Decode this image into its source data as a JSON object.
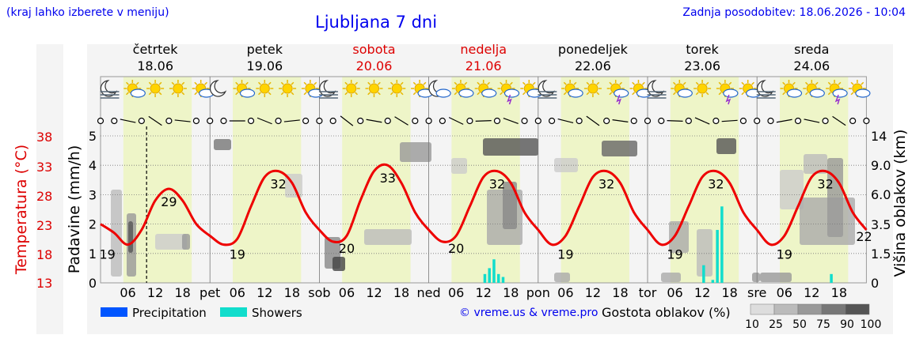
{
  "header": {
    "hint": "(kraj lahko izberete v meniju)",
    "title": "Ljubljana 7 dni",
    "updated": "Zadnja posodobitev: 18.06.2026 - 10:04"
  },
  "days": [
    {
      "name": "četrtek",
      "date": "18.06",
      "weekend": false,
      "abbr": ""
    },
    {
      "name": "petek",
      "date": "19.06",
      "weekend": false,
      "abbr": "pet"
    },
    {
      "name": "sobota",
      "date": "20.06",
      "weekend": true,
      "abbr": "sob"
    },
    {
      "name": "nedelja",
      "date": "21.06",
      "weekend": true,
      "abbr": "ned"
    },
    {
      "name": "ponedeljek",
      "date": "22.06",
      "weekend": false,
      "abbr": "pon"
    },
    {
      "name": "torek",
      "date": "23.06",
      "weekend": false,
      "abbr": "tor"
    },
    {
      "name": "sreda",
      "date": "24.06",
      "weekend": false,
      "abbr": "sre"
    }
  ],
  "weather_icons": [
    [
      "moon-fog-icon",
      "sun-cloud-icon",
      "sun-icon",
      "sun-icon",
      "sun-cloud-icon"
    ],
    [
      "moon-icon",
      "sun-cloud-icon",
      "sun-icon",
      "sun-icon",
      "sun-cloud-icon"
    ],
    [
      "moon-fog-icon",
      "sun-icon",
      "sun-icon",
      "sun-icon",
      "sun-cloud-icon"
    ],
    [
      "moon-cloud-icon",
      "sun-cloud-icon",
      "sun-cloud-icon",
      "sun-thunder-icon",
      "sun-cloud-icon"
    ],
    [
      "moon-fog-icon",
      "sun-cloud-icon",
      "sun-icon",
      "sun-thunder-icon",
      "sun-cloud-icon"
    ],
    [
      "moon-fog-icon",
      "sun-cloud-icon",
      "sun-icon",
      "sun-thunder-icon",
      "sun-cloud-icon"
    ],
    [
      "moon-fog-icon",
      "sun-cloud-icon",
      "sun-cloud-icon",
      "sun-thunder-icon",
      "sun-cloud-icon"
    ]
  ],
  "chart_data": {
    "type": "line",
    "hour_ticks": [
      "06",
      "12",
      "18"
    ],
    "left_axis_title": "Padavine (mm/h)",
    "left_axis_ticks": [
      "0",
      "1",
      "2",
      "3",
      "4",
      "5"
    ],
    "temp_axis_title": "Temperatura (°C)",
    "temp_axis_ticks": [
      "13",
      "18",
      "23",
      "28",
      "33",
      "38"
    ],
    "right_axis_title": "Višina oblakov (km)",
    "right_axis_ticks": [
      "0",
      "1.5",
      "3.5",
      "6.0",
      "9.0",
      "14"
    ],
    "temperature_extremes": [
      {
        "day": 0,
        "hour": 1.5,
        "value": "19"
      },
      {
        "day": 0,
        "hour": 15,
        "value": "29"
      },
      {
        "day": 1,
        "hour": 6,
        "value": "19"
      },
      {
        "day": 1,
        "hour": 15,
        "value": "32"
      },
      {
        "day": 2,
        "hour": 6,
        "value": "20"
      },
      {
        "day": 2,
        "hour": 15,
        "value": "33"
      },
      {
        "day": 3,
        "hour": 6,
        "value": "20"
      },
      {
        "day": 3,
        "hour": 15,
        "value": "32"
      },
      {
        "day": 4,
        "hour": 6,
        "value": "19"
      },
      {
        "day": 4,
        "hour": 15,
        "value": "32"
      },
      {
        "day": 5,
        "hour": 6,
        "value": "19"
      },
      {
        "day": 5,
        "hour": 15,
        "value": "32"
      },
      {
        "day": 6,
        "hour": 6,
        "value": "19"
      },
      {
        "day": 6,
        "hour": 15,
        "value": "32"
      },
      {
        "day": 6,
        "hour": 23.5,
        "value": "22"
      }
    ],
    "temperature_series": {
      "hours": [
        0,
        3,
        6,
        9,
        12,
        15,
        18,
        21,
        24,
        27,
        30,
        33,
        36,
        39,
        42,
        45,
        48,
        51,
        54,
        57,
        60,
        63,
        66,
        69,
        72,
        75,
        78,
        81,
        84,
        87,
        90,
        93,
        96,
        99,
        102,
        105,
        108,
        111,
        114,
        117,
        120,
        123,
        126,
        129,
        132,
        135,
        138,
        141,
        144,
        147,
        150,
        153,
        156,
        159,
        162,
        165,
        168
      ],
      "values": [
        23,
        21.5,
        19.5,
        22,
        27,
        29,
        27,
        23,
        21,
        19.5,
        20.5,
        26,
        31,
        32,
        30,
        25,
        22,
        20,
        21,
        27,
        32,
        33,
        30,
        25,
        22,
        20,
        21,
        26,
        31,
        32,
        30,
        25,
        22,
        19.5,
        21,
        26,
        31,
        32,
        30,
        25,
        22,
        19.5,
        21,
        26,
        31,
        32,
        30,
        25,
        22,
        19.5,
        21,
        26,
        31,
        32,
        30,
        25,
        22
      ]
    },
    "current_time_hour": 10.1,
    "showers": [
      {
        "day": 3,
        "hour": 12,
        "value": 0.3
      },
      {
        "day": 3,
        "hour": 13,
        "value": 0.5
      },
      {
        "day": 3,
        "hour": 14,
        "value": 0.8
      },
      {
        "day": 3,
        "hour": 15,
        "value": 0.3
      },
      {
        "day": 3,
        "hour": 16,
        "value": 0.2
      },
      {
        "day": 5,
        "hour": 12,
        "value": 0.6
      },
      {
        "day": 5,
        "hour": 14,
        "value": 0.1
      },
      {
        "day": 5,
        "hour": 15,
        "value": 1.8
      },
      {
        "day": 5,
        "hour": 16,
        "value": 2.6
      },
      {
        "day": 6,
        "hour": 16,
        "value": 0.3
      }
    ],
    "legend": {
      "precipitation_label": "Precipitation",
      "precipitation_color": "#0055ff",
      "showers_label": "Showers",
      "showers_color": "#11ddcc",
      "density_label": "Gostota oblakov (%)",
      "density_ticks": [
        "10",
        "25",
        "50",
        "75",
        "90",
        "100"
      ]
    },
    "colors": {
      "temperature": "#ee0000",
      "day_band": "#eef5c8",
      "night_band": "#f4f4f4"
    }
  },
  "credit": "© vreme.us & vreme.pro"
}
